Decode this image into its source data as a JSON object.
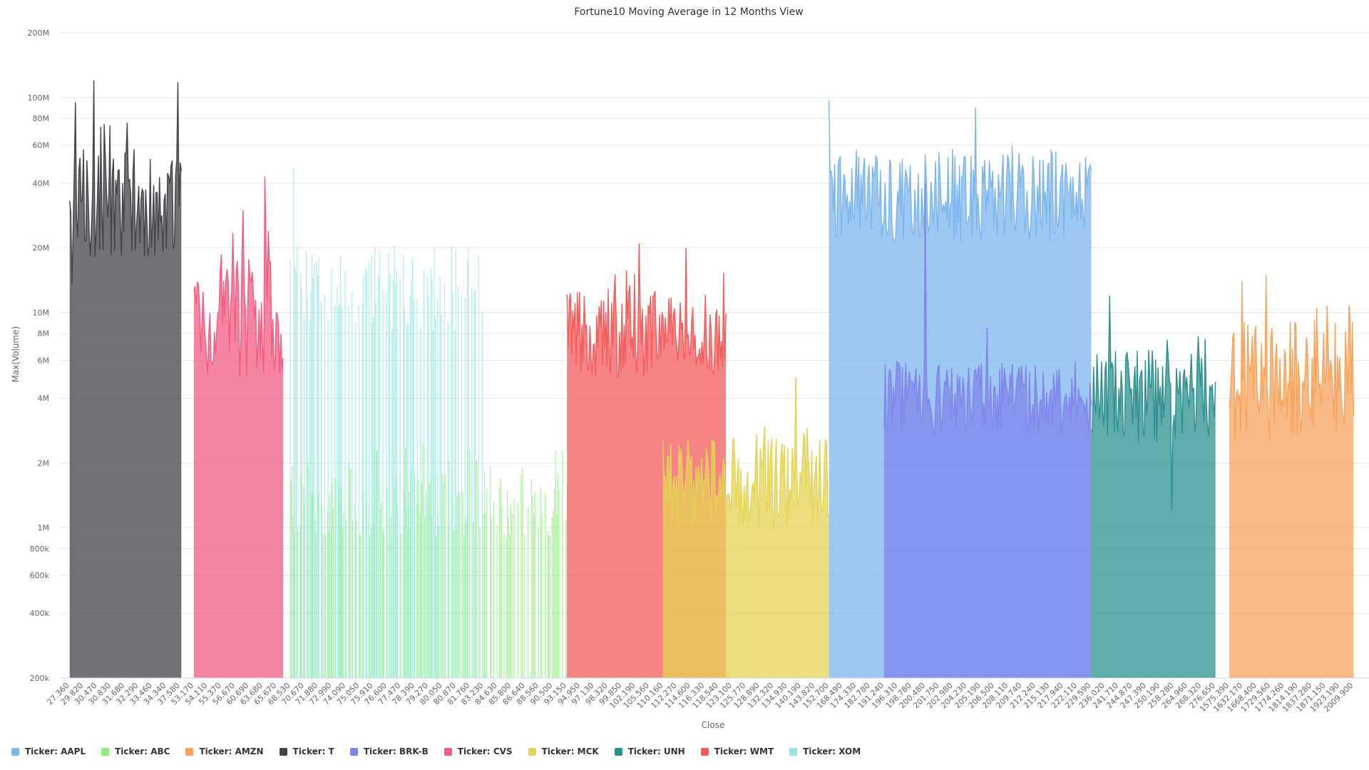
{
  "chart_data": {
    "type": "area",
    "title": "Fortune10 Moving Average in 12 Months View",
    "xlabel": "Close",
    "ylabel": "Max(Volume)",
    "y_scale": "log",
    "ylim": [
      200000,
      200000000
    ],
    "y_ticks": [
      200000,
      400000,
      600000,
      800000,
      1000000,
      2000000,
      4000000,
      6000000,
      8000000,
      10000000,
      20000000,
      40000000,
      60000000,
      80000000,
      100000000,
      200000000
    ],
    "y_tick_labels": [
      "200k",
      "400k",
      "600k",
      "800k",
      "1M",
      "2M",
      "4M",
      "6M",
      "8M",
      "10M",
      "20M",
      "40M",
      "60M",
      "80M",
      "100M",
      "200M"
    ],
    "x_tick_labels": [
      "27.360",
      "29.820",
      "30.470",
      "30.830",
      "31.680",
      "32.290",
      "33.460",
      "34.340",
      "37.580",
      "53.170",
      "54.110",
      "55.370",
      "56.670",
      "60.690",
      "63.680",
      "65.670",
      "68.530",
      "70.670",
      "71.880",
      "72.990",
      "74.090",
      "75.050",
      "75.910",
      "76.600",
      "77.470",
      "78.390",
      "79.270",
      "80.050",
      "80.870",
      "81.760",
      "83.230",
      "84.630",
      "85.800",
      "86.640",
      "88.560",
      "90.500",
      "93.150",
      "94.950",
      "97.130",
      "98.320",
      "99.850",
      "102.190",
      "105.560",
      "110.160",
      "112.270",
      "114.600",
      "116.330",
      "118.540",
      "123.100",
      "125.770",
      "128.890",
      "132.320",
      "134.930",
      "140.190",
      "143.820",
      "152.700",
      "168.490",
      "174.330",
      "182.780",
      "191.240",
      "196.310",
      "198.780",
      "200.480",
      "201.750",
      "202.980",
      "204.230",
      "205.190",
      "206.500",
      "208.110",
      "209.740",
      "212.240",
      "215.130",
      "217.940",
      "222.110",
      "229.590",
      "236.020",
      "241.710",
      "244.870",
      "247.390",
      "250.190",
      "258.280",
      "264.960",
      "268.320",
      "276.650",
      "1575.390",
      "1632.170",
      "1668.400",
      "1729.560",
      "1774.260",
      "1814.190",
      "1837.280",
      "1871.150",
      "1923.190",
      "2009.900"
    ],
    "grid": true,
    "legend_position": "bottom-left",
    "series": [
      {
        "name": "Ticker: T",
        "color": "#434348",
        "x_range": [
          27.36,
          39.0
        ],
        "range": [
          18000000,
          80000000
        ],
        "base": 28000000,
        "spikes": [
          [
            0.02,
            13500000,
            "low"
          ],
          [
            0.05,
            95000000
          ],
          [
            0.22,
            120000000
          ],
          [
            0.5,
            55000000
          ],
          [
            0.97,
            118000000
          ]
        ]
      },
      {
        "name": "Ticker: CVS",
        "color": "#f15c80",
        "x_range": [
          53.17,
          67.0
        ],
        "range": [
          5000000,
          25000000
        ],
        "base": 9500000,
        "spikes": [
          [
            0.8,
            43000000
          ],
          [
            0.55,
            30000000
          ]
        ]
      },
      {
        "name": "Ticker: XOM",
        "color": "#91e8e1",
        "x_range": [
          68.5,
          83.3
        ],
        "range": [
          8000000,
          22000000
        ],
        "base": 13000000,
        "sparse": true,
        "spikes": [
          [
            0.02,
            47000000
          ]
        ]
      },
      {
        "name": "Ticker: ABC",
        "color": "#90ed7d",
        "x_range": [
          68.6,
          93.2
        ],
        "range": [
          900000,
          2500000
        ],
        "base": 1300000,
        "sparse": true,
        "spikes": [
          [
            0.62,
            5000000
          ]
        ]
      },
      {
        "name": "Ticker: WMT",
        "color": "#f45b5b",
        "x_range": [
          93.2,
          121.0
        ],
        "range": [
          5000000,
          16000000
        ],
        "base": 8000000,
        "spikes": [
          [
            0.45,
            21000000
          ],
          [
            0.75,
            20000000
          ]
        ]
      },
      {
        "name": "Ticker: MCK",
        "color": "#e4d354",
        "x_range": [
          110.0,
          152.7
        ],
        "range": [
          1000000,
          3000000
        ],
        "base": 1600000,
        "spikes": [
          [
            0.8,
            5000000
          ]
        ]
      },
      {
        "name": "Ticker: AAPL",
        "color": "#7cb5ec",
        "x_range": [
          152.7,
          229.6
        ],
        "range": [
          20000000,
          60000000
        ],
        "base": 35000000,
        "spikes": [
          [
            0.0,
            97000000
          ],
          [
            0.56,
            90000000
          ]
        ]
      },
      {
        "name": "Ticker: BRK-B",
        "color": "#8085e9",
        "x_range": [
          191.2,
          229.6
        ],
        "range": [
          2500000,
          6000000
        ],
        "base": 4000000,
        "spikes": [
          [
            0.2,
            40000000
          ],
          [
            0.5,
            8500000
          ]
        ]
      },
      {
        "name": "Ticker: UNH",
        "color": "#2b908f",
        "x_range": [
          229.6,
          276.7
        ],
        "range": [
          2500000,
          8000000
        ],
        "base": 4000000,
        "spikes": [
          [
            0.15,
            12000000
          ],
          [
            0.65,
            1200000,
            "low"
          ]
        ]
      },
      {
        "name": "Ticker: AMZN",
        "color": "#f7a35c",
        "x_range": [
          1575.39,
          2009.9
        ],
        "range": [
          2500000,
          11000000
        ],
        "base": 5000000,
        "spikes": [
          [
            0.1,
            14000000
          ],
          [
            0.3,
            15000000
          ]
        ]
      }
    ]
  },
  "legend": {
    "items": [
      {
        "label": "Ticker: AAPL",
        "color": "#7cb5ec"
      },
      {
        "label": "Ticker: ABC",
        "color": "#90ed7d"
      },
      {
        "label": "Ticker: AMZN",
        "color": "#f7a35c"
      },
      {
        "label": "Ticker: T",
        "color": "#434348"
      },
      {
        "label": "Ticker: BRK-B",
        "color": "#8085e9"
      },
      {
        "label": "Ticker: CVS",
        "color": "#f15c80"
      },
      {
        "label": "Ticker: MCK",
        "color": "#e4d354"
      },
      {
        "label": "Ticker: UNH",
        "color": "#2b908f"
      },
      {
        "label": "Ticker: WMT",
        "color": "#f45b5b"
      },
      {
        "label": "Ticker: XOM",
        "color": "#91e8e1"
      }
    ]
  }
}
